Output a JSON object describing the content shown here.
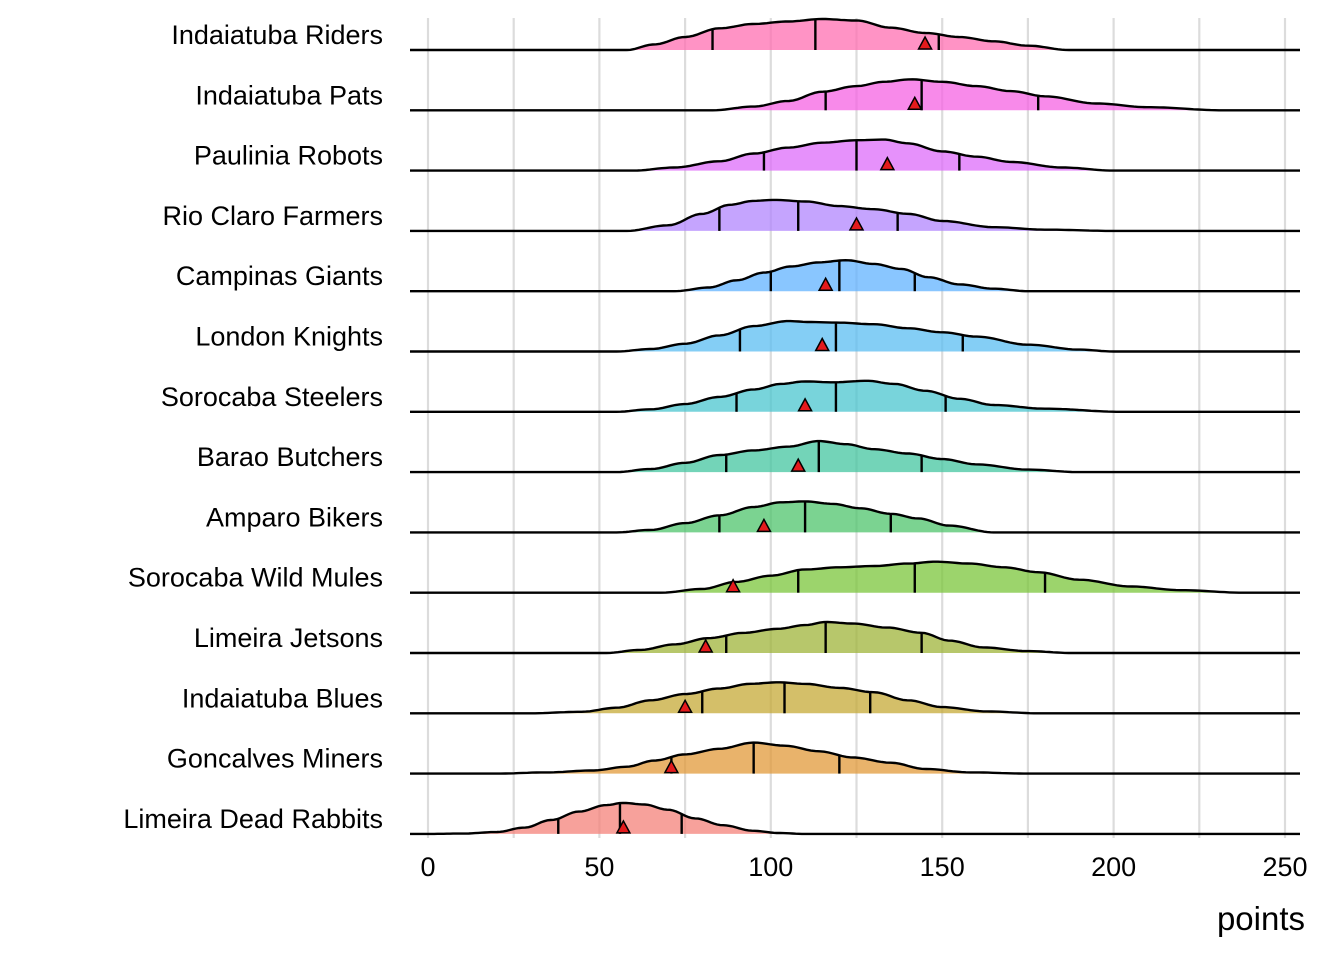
{
  "chart_data": {
    "type": "ridgeline",
    "xlabel": "points",
    "xlim": [
      0,
      250
    ],
    "xticks": [
      0,
      50,
      100,
      150,
      200,
      250
    ],
    "quantile_lines": "25th, 50th, 75th percentiles",
    "point_marker": "red triangle",
    "series": [
      {
        "name": "Indaiatuba Riders",
        "color": "#FF6FB1",
        "range": [
          58,
          187
        ],
        "peak": 115,
        "q1": 83,
        "median": 113,
        "q3": 149,
        "point": 145,
        "density": [
          [
            58,
            0
          ],
          [
            66,
            0.18
          ],
          [
            75,
            0.42
          ],
          [
            85,
            0.7
          ],
          [
            95,
            0.84
          ],
          [
            105,
            0.92
          ],
          [
            115,
            1
          ],
          [
            125,
            0.95
          ],
          [
            135,
            0.72
          ],
          [
            145,
            0.55
          ],
          [
            155,
            0.42
          ],
          [
            165,
            0.28
          ],
          [
            175,
            0.14
          ],
          [
            187,
            0
          ]
        ]
      },
      {
        "name": "Indaiatuba Pats",
        "color": "#F563E3",
        "range": [
          83,
          232
        ],
        "peak": 141,
        "q1": 116,
        "median": 144,
        "q3": 178,
        "point": 142,
        "density": [
          [
            83,
            0
          ],
          [
            95,
            0.12
          ],
          [
            105,
            0.3
          ],
          [
            115,
            0.6
          ],
          [
            125,
            0.78
          ],
          [
            133,
            0.92
          ],
          [
            141,
            1
          ],
          [
            150,
            0.92
          ],
          [
            160,
            0.78
          ],
          [
            170,
            0.62
          ],
          [
            180,
            0.45
          ],
          [
            195,
            0.22
          ],
          [
            210,
            0.1
          ],
          [
            232,
            0
          ]
        ]
      },
      {
        "name": "Paulinia Robots",
        "color": "#DE6CFA",
        "range": [
          60,
          200
        ],
        "peak": 130,
        "q1": 98,
        "median": 125,
        "q3": 155,
        "point": 134,
        "density": [
          [
            60,
            0
          ],
          [
            72,
            0.1
          ],
          [
            85,
            0.3
          ],
          [
            95,
            0.55
          ],
          [
            105,
            0.74
          ],
          [
            115,
            0.9
          ],
          [
            125,
            0.98
          ],
          [
            133,
            1
          ],
          [
            140,
            0.88
          ],
          [
            150,
            0.62
          ],
          [
            160,
            0.45
          ],
          [
            170,
            0.28
          ],
          [
            185,
            0.1
          ],
          [
            200,
            0
          ]
        ]
      },
      {
        "name": "Rio Claro Farmers",
        "color": "#B186FE",
        "range": [
          58,
          200
        ],
        "peak": 101,
        "q1": 85,
        "median": 108,
        "q3": 137,
        "point": 125,
        "density": [
          [
            58,
            0
          ],
          [
            70,
            0.18
          ],
          [
            80,
            0.55
          ],
          [
            88,
            0.84
          ],
          [
            95,
            0.97
          ],
          [
            101,
            1
          ],
          [
            110,
            0.95
          ],
          [
            120,
            0.8
          ],
          [
            130,
            0.7
          ],
          [
            140,
            0.55
          ],
          [
            150,
            0.32
          ],
          [
            165,
            0.12
          ],
          [
            180,
            0.04
          ],
          [
            200,
            0
          ]
        ]
      },
      {
        "name": "Campinas Giants",
        "color": "#62B3FF",
        "range": [
          72,
          175
        ],
        "peak": 122,
        "q1": 100,
        "median": 120,
        "q3": 142,
        "point": 116,
        "density": [
          [
            72,
            0
          ],
          [
            82,
            0.12
          ],
          [
            90,
            0.35
          ],
          [
            98,
            0.6
          ],
          [
            106,
            0.8
          ],
          [
            114,
            0.93
          ],
          [
            122,
            1
          ],
          [
            130,
            0.88
          ],
          [
            138,
            0.72
          ],
          [
            146,
            0.45
          ],
          [
            155,
            0.22
          ],
          [
            165,
            0.08
          ],
          [
            175,
            0
          ]
        ]
      },
      {
        "name": "London Knights",
        "color": "#5BBEF2",
        "range": [
          55,
          200
        ],
        "peak": 105,
        "q1": 91,
        "median": 119,
        "q3": 156,
        "point": 115,
        "density": [
          [
            55,
            0
          ],
          [
            65,
            0.08
          ],
          [
            75,
            0.25
          ],
          [
            85,
            0.52
          ],
          [
            95,
            0.82
          ],
          [
            105,
            0.98
          ],
          [
            112,
            0.95
          ],
          [
            120,
            0.93
          ],
          [
            130,
            0.88
          ],
          [
            140,
            0.75
          ],
          [
            150,
            0.62
          ],
          [
            160,
            0.48
          ],
          [
            175,
            0.22
          ],
          [
            190,
            0.06
          ],
          [
            200,
            0
          ]
        ]
      },
      {
        "name": "Sorocaba Steelers",
        "color": "#4BC6CF",
        "range": [
          55,
          202
        ],
        "peak": 128,
        "q1": 90,
        "median": 119,
        "q3": 151,
        "point": 110,
        "density": [
          [
            55,
            0
          ],
          [
            65,
            0.08
          ],
          [
            75,
            0.25
          ],
          [
            85,
            0.48
          ],
          [
            95,
            0.72
          ],
          [
            103,
            0.9
          ],
          [
            110,
            0.98
          ],
          [
            118,
            0.95
          ],
          [
            128,
            1
          ],
          [
            136,
            0.9
          ],
          [
            145,
            0.68
          ],
          [
            155,
            0.42
          ],
          [
            165,
            0.22
          ],
          [
            180,
            0.1
          ],
          [
            202,
            0
          ]
        ]
      },
      {
        "name": "Barao Butchers",
        "color": "#44C6A0",
        "range": [
          55,
          190
        ],
        "peak": 114,
        "q1": 87,
        "median": 114,
        "q3": 144,
        "point": 108,
        "density": [
          [
            55,
            0
          ],
          [
            65,
            0.1
          ],
          [
            75,
            0.3
          ],
          [
            85,
            0.55
          ],
          [
            95,
            0.7
          ],
          [
            105,
            0.82
          ],
          [
            114,
            1
          ],
          [
            122,
            0.9
          ],
          [
            130,
            0.74
          ],
          [
            140,
            0.6
          ],
          [
            150,
            0.42
          ],
          [
            160,
            0.25
          ],
          [
            175,
            0.08
          ],
          [
            190,
            0
          ]
        ]
      },
      {
        "name": "Amparo Bikers",
        "color": "#4FC46C",
        "range": [
          55,
          165
        ],
        "peak": 108,
        "q1": 85,
        "median": 110,
        "q3": 135,
        "point": 98,
        "density": [
          [
            55,
            0
          ],
          [
            65,
            0.08
          ],
          [
            75,
            0.3
          ],
          [
            85,
            0.55
          ],
          [
            95,
            0.82
          ],
          [
            103,
            0.97
          ],
          [
            110,
            1
          ],
          [
            118,
            0.92
          ],
          [
            126,
            0.78
          ],
          [
            135,
            0.6
          ],
          [
            143,
            0.45
          ],
          [
            152,
            0.22
          ],
          [
            165,
            0
          ]
        ]
      },
      {
        "name": "Sorocaba Wild Mules",
        "color": "#7BC53B",
        "range": [
          68,
          238
        ],
        "peak": 148,
        "q1": 108,
        "median": 142,
        "q3": 180,
        "point": 89,
        "density": [
          [
            68,
            0
          ],
          [
            80,
            0.12
          ],
          [
            90,
            0.35
          ],
          [
            100,
            0.55
          ],
          [
            110,
            0.75
          ],
          [
            120,
            0.82
          ],
          [
            130,
            0.86
          ],
          [
            140,
            0.94
          ],
          [
            148,
            1
          ],
          [
            158,
            0.94
          ],
          [
            168,
            0.82
          ],
          [
            178,
            0.66
          ],
          [
            190,
            0.42
          ],
          [
            205,
            0.2
          ],
          [
            220,
            0.08
          ],
          [
            238,
            0
          ]
        ]
      },
      {
        "name": "Limeira Jetsons",
        "color": "#9FB43A",
        "range": [
          52,
          188
        ],
        "peak": 116,
        "q1": 87,
        "median": 116,
        "q3": 144,
        "point": 81,
        "density": [
          [
            52,
            0
          ],
          [
            62,
            0.1
          ],
          [
            72,
            0.28
          ],
          [
            82,
            0.48
          ],
          [
            92,
            0.65
          ],
          [
            102,
            0.78
          ],
          [
            110,
            0.9
          ],
          [
            116,
            1
          ],
          [
            124,
            0.95
          ],
          [
            134,
            0.82
          ],
          [
            144,
            0.65
          ],
          [
            152,
            0.4
          ],
          [
            162,
            0.18
          ],
          [
            175,
            0.06
          ],
          [
            188,
            0
          ]
        ]
      },
      {
        "name": "Indaiatuba Blues",
        "color": "#C6A937",
        "range": [
          30,
          178
        ],
        "peak": 102,
        "q1": 80,
        "median": 104,
        "q3": 129,
        "point": 75,
        "density": [
          [
            30,
            0
          ],
          [
            45,
            0.05
          ],
          [
            55,
            0.18
          ],
          [
            65,
            0.42
          ],
          [
            75,
            0.62
          ],
          [
            85,
            0.8
          ],
          [
            94,
            0.95
          ],
          [
            102,
            1
          ],
          [
            110,
            0.95
          ],
          [
            120,
            0.82
          ],
          [
            130,
            0.68
          ],
          [
            140,
            0.42
          ],
          [
            150,
            0.2
          ],
          [
            163,
            0.06
          ],
          [
            178,
            0
          ]
        ]
      },
      {
        "name": "Goncalves Miners",
        "color": "#E2993A",
        "range": [
          20,
          175
        ],
        "peak": 95,
        "q1": 71,
        "median": 95,
        "q3": 120,
        "point": 71,
        "density": [
          [
            20,
            0
          ],
          [
            35,
            0.04
          ],
          [
            48,
            0.1
          ],
          [
            58,
            0.22
          ],
          [
            66,
            0.42
          ],
          [
            75,
            0.62
          ],
          [
            85,
            0.8
          ],
          [
            95,
            1
          ],
          [
            104,
            0.9
          ],
          [
            114,
            0.72
          ],
          [
            124,
            0.52
          ],
          [
            135,
            0.35
          ],
          [
            145,
            0.15
          ],
          [
            158,
            0.04
          ],
          [
            175,
            0
          ]
        ]
      },
      {
        "name": "Limeira Dead Rabbits",
        "color": "#F4827A",
        "range": [
          0,
          110
        ],
        "peak": 57,
        "q1": 38,
        "median": 56,
        "q3": 74,
        "point": 57,
        "density": [
          [
            0,
            0
          ],
          [
            10,
            0.01
          ],
          [
            20,
            0.06
          ],
          [
            28,
            0.2
          ],
          [
            36,
            0.45
          ],
          [
            44,
            0.72
          ],
          [
            52,
            0.93
          ],
          [
            57,
            1
          ],
          [
            63,
            0.95
          ],
          [
            70,
            0.78
          ],
          [
            78,
            0.5
          ],
          [
            86,
            0.28
          ],
          [
            95,
            0.1
          ],
          [
            102,
            0.03
          ],
          [
            110,
            0
          ]
        ]
      }
    ]
  }
}
